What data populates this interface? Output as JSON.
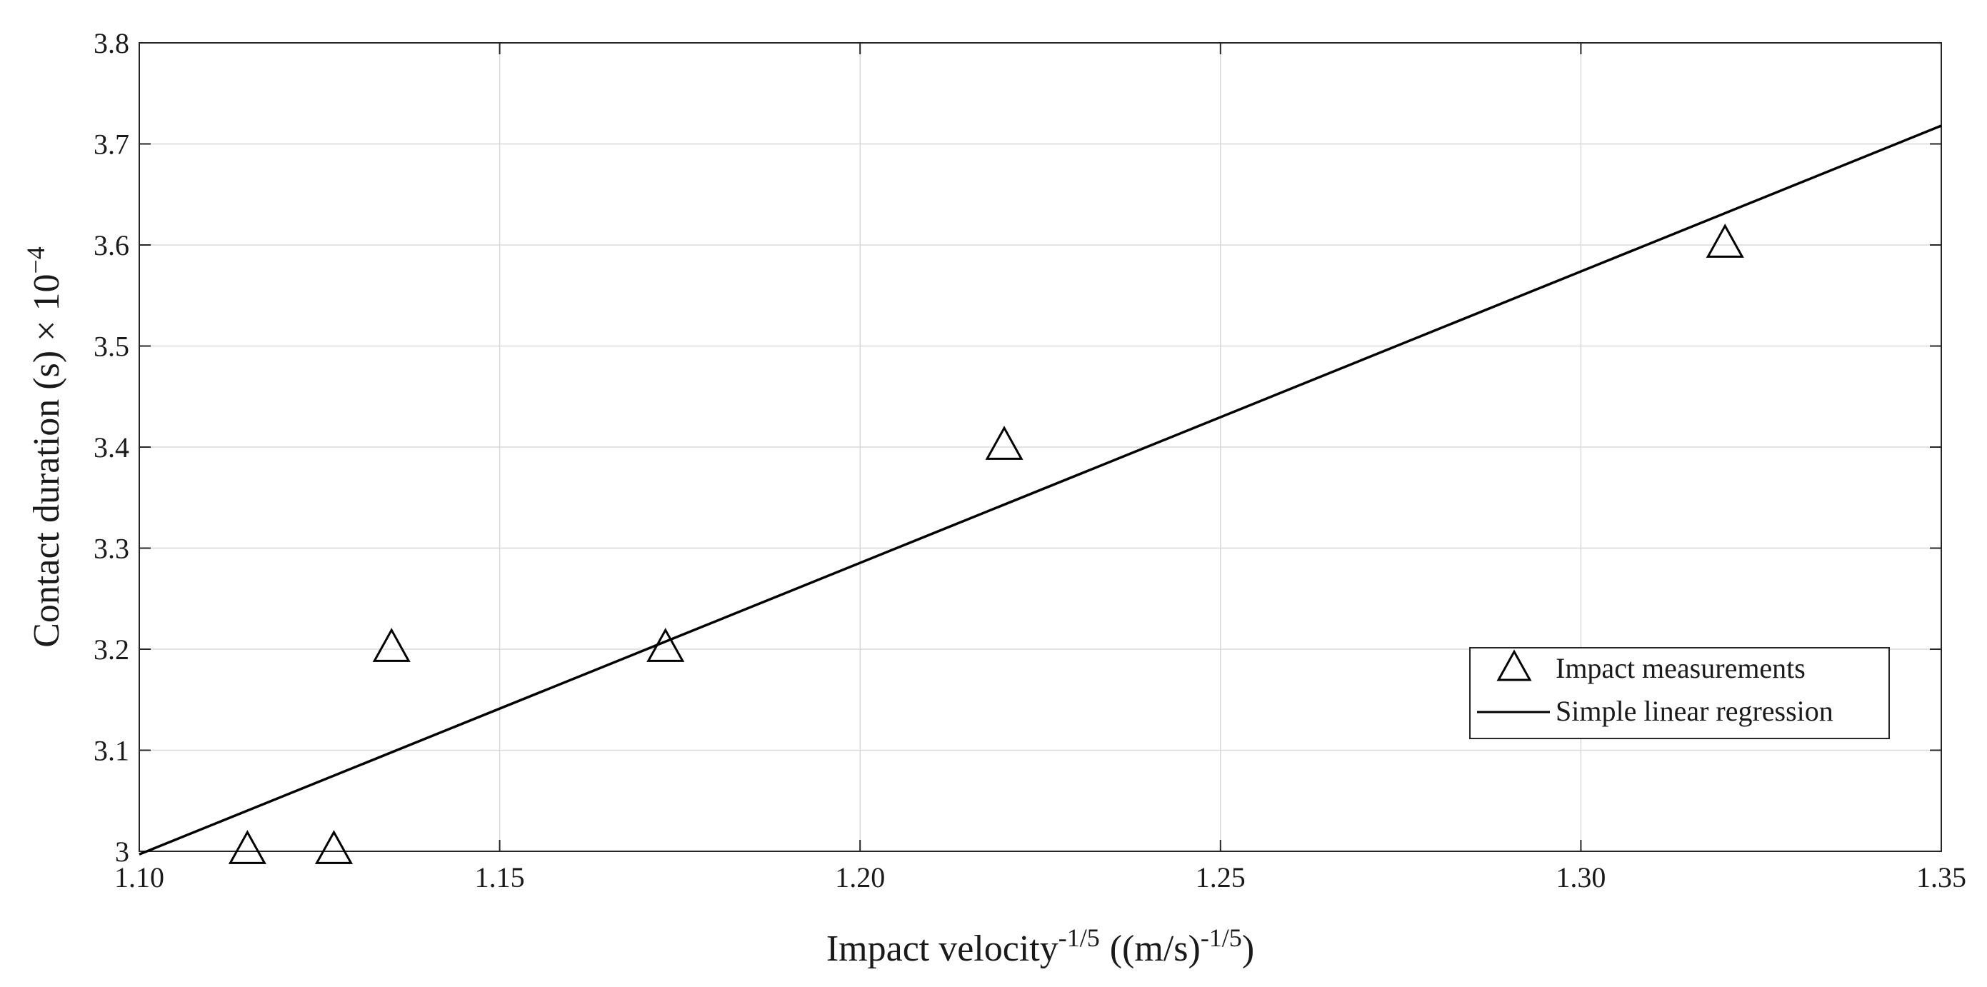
{
  "chart_data": {
    "type": "scatter",
    "xlabel": "Impact velocity",
    "xlabel_sup": "-1/5",
    "xlabel_unit": "((m/s)",
    "xlabel_unit_sup": "-1/5",
    "xlabel_close": ")",
    "ylabel": "Contact duration (s) × 10",
    "ylabel_sup": "−4",
    "xlim": [
      1.1,
      1.35
    ],
    "ylim": [
      3.0,
      3.8
    ],
    "xticks": [
      1.1,
      1.15,
      1.2,
      1.25,
      1.3,
      1.35
    ],
    "xtick_labels": [
      "1.10",
      "1.15",
      "1.20",
      "1.25",
      "1.30",
      "1.35"
    ],
    "yticks": [
      3.0,
      3.1,
      3.2,
      3.3,
      3.4,
      3.5,
      3.6,
      3.7,
      3.8
    ],
    "ytick_labels": [
      "3",
      "3.1",
      "3.2",
      "3.3",
      "3.4",
      "3.5",
      "3.6",
      "3.7",
      "3.8"
    ],
    "grid": true,
    "legend_position": "lower-right",
    "series": [
      {
        "name": "Impact measurements",
        "kind": "scatter",
        "marker": "triangle",
        "x": [
          1.115,
          1.127,
          1.135,
          1.173,
          1.22,
          1.32
        ],
        "y": [
          3.0,
          3.0,
          3.2,
          3.2,
          3.4,
          3.6
        ]
      },
      {
        "name": "Simple linear regression",
        "kind": "line",
        "x": [
          1.1,
          1.35
        ],
        "y": [
          2.997,
          3.718
        ]
      }
    ],
    "colors": {
      "line": "#000000",
      "grid": "#d9d9d9",
      "axis": "#262626"
    }
  }
}
